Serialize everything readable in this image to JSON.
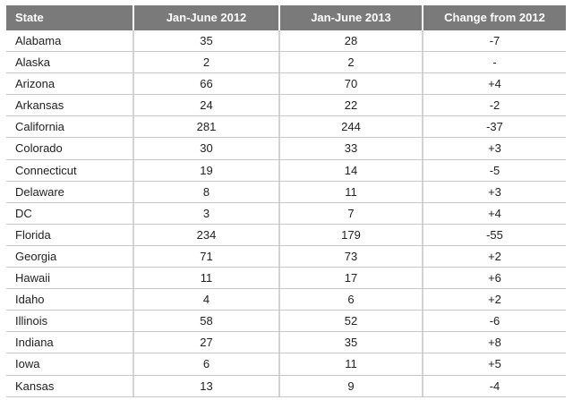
{
  "chart_data": {
    "type": "table",
    "columns": [
      "State",
      "Jan-June 2012",
      "Jan-June 2013",
      "Change from 2012"
    ],
    "rows": [
      [
        "Alabama",
        "35",
        "28",
        "-7"
      ],
      [
        "Alaska",
        "2",
        "2",
        "-"
      ],
      [
        "Arizona",
        "66",
        "70",
        "+4"
      ],
      [
        "Arkansas",
        "24",
        "22",
        "-2"
      ],
      [
        "California",
        "281",
        "244",
        "-37"
      ],
      [
        "Colorado",
        "30",
        "33",
        "+3"
      ],
      [
        "Connecticut",
        "19",
        "14",
        "-5"
      ],
      [
        "Delaware",
        "8",
        "11",
        "+3"
      ],
      [
        "DC",
        "3",
        "7",
        "+4"
      ],
      [
        "Florida",
        "234",
        "179",
        "-55"
      ],
      [
        "Georgia",
        "71",
        "73",
        "+2"
      ],
      [
        "Hawaii",
        "11",
        "17",
        "+6"
      ],
      [
        "Idaho",
        "4",
        "6",
        "+2"
      ],
      [
        "Illinois",
        "58",
        "52",
        "-6"
      ],
      [
        "Indiana",
        "27",
        "35",
        "+8"
      ],
      [
        "Iowa",
        "6",
        "11",
        "+5"
      ],
      [
        "Kansas",
        "13",
        "9",
        "-4"
      ]
    ],
    "colors": {
      "header_bg": "#7a7a7a",
      "header_text": "#ffffff",
      "grid_line": "#c8c8c8",
      "text": "#222222"
    }
  }
}
